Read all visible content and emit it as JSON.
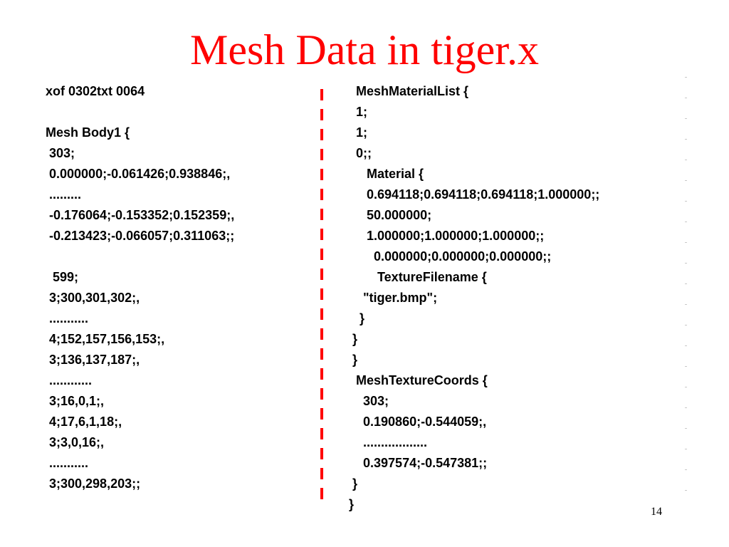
{
  "slide": {
    "title": "Mesh Data in tiger.x",
    "page_number": "14",
    "accent_color": "#ff0000"
  },
  "left_column": {
    "lines": [
      "xof 0302txt 0064",
      "",
      "Mesh Body1 {",
      " 303;",
      " 0.000000;-0.061426;0.938846;,",
      " .........",
      " -0.176064;-0.153352;0.152359;,",
      " -0.213423;-0.066057;0.311063;;",
      "",
      "  599;",
      " 3;300,301,302;,",
      " ...........",
      " 4;152,157,156,153;,",
      " 3;136,137,187;,",
      " ............",
      " 3;16,0,1;,",
      " 4;17,6,1,18;,",
      " 3;3,0,16;,",
      " ...........",
      " 3;300,298,203;;"
    ]
  },
  "right_column": {
    "lines": [
      "      MeshMaterialList {",
      "      1;",
      "      1;",
      "      0;;",
      "         Material {",
      "         0.694118;0.694118;0.694118;1.000000;;",
      "         50.000000;",
      "         1.000000;1.000000;1.000000;;",
      "           0.000000;0.000000;0.000000;;",
      "            TextureFilename {",
      "        \"tiger.bmp\";",
      "       }",
      "     }",
      "     }",
      "      MeshTextureCoords {",
      "        303;",
      "        0.190860;-0.544059;,",
      "        ..................",
      "        0.397574;-0.547381;;",
      "     }",
      "    }"
    ]
  }
}
